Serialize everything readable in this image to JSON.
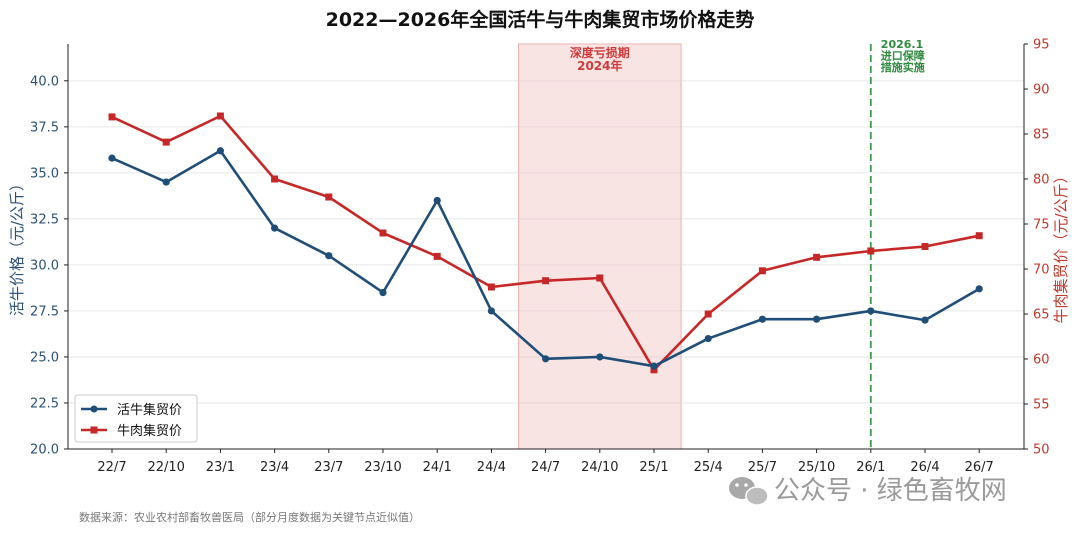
{
  "chart_data": {
    "type": "line",
    "title": "2022—2026年全国活牛与牛肉集贸市场价格走势",
    "categories": [
      "22/7",
      "22/10",
      "23/1",
      "23/4",
      "23/7",
      "23/10",
      "24/1",
      "24/4",
      "24/7",
      "24/10",
      "25/1",
      "25/4",
      "25/7",
      "25/10",
      "26/1",
      "26/4",
      "26/7"
    ],
    "y_left": {
      "label": "活牛价格（元/公斤）",
      "lim": [
        20.0,
        42.0
      ],
      "ticks": [
        "20.0",
        "22.5",
        "25.0",
        "27.5",
        "30.0",
        "32.5",
        "35.0",
        "37.5",
        "40.0"
      ]
    },
    "y_right": {
      "label": "牛肉集贸价（元/公斤）",
      "lim": [
        50,
        95
      ],
      "ticks": [
        "50",
        "55",
        "60",
        "65",
        "70",
        "75",
        "80",
        "85",
        "90",
        "95"
      ]
    },
    "series": [
      {
        "name": "活牛集贸价",
        "axis": "left",
        "color": "#1f4e79",
        "marker": "circle",
        "values": [
          35.8,
          34.5,
          36.2,
          32.0,
          30.5,
          28.5,
          33.5,
          27.5,
          24.9,
          25.0,
          24.5,
          26.0,
          27.05,
          27.05,
          27.5,
          27.0,
          28.7
        ]
      },
      {
        "name": "牛肉集贸价",
        "axis": "right",
        "color": "#c62828",
        "marker": "square",
        "values": [
          86.9,
          84.1,
          87.0,
          80.0,
          78.0,
          74.0,
          71.4,
          68.0,
          68.7,
          69.0,
          58.8,
          65.0,
          69.8,
          71.3,
          72.0,
          72.5,
          73.7
        ]
      }
    ],
    "annotations": {
      "shaded_region": {
        "from_index": 7.5,
        "to_index": 10.5,
        "color": "#f2c4c4",
        "text_lines": [
          "深度亏损期",
          "2024年"
        ]
      },
      "vertical_line": {
        "at_index": 14,
        "color": "#3a9a4a",
        "text_lines": [
          "2026.1",
          "进口保障",
          "措施实施"
        ]
      }
    },
    "grid": "horizontal",
    "legend_position": "lower-left"
  },
  "footer": {
    "source": "数据来源：农业农村部畜牧兽医局（部分月度数据为关键节点近似值）",
    "watermark": "公众号 · 绿色畜牧网"
  },
  "colors": {
    "left_axis": "#2b4f77",
    "right_axis": "#c0392b",
    "grid": "#e6e6e6"
  }
}
